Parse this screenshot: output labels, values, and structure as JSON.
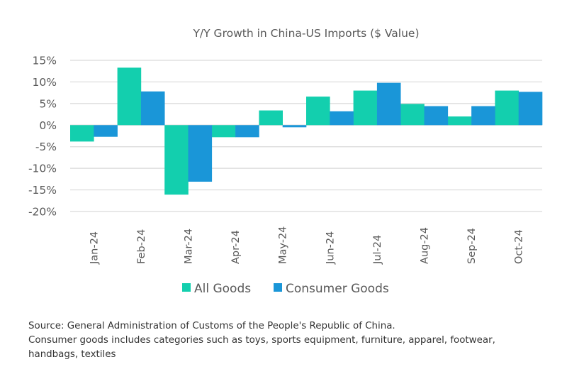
{
  "chart_data": {
    "type": "bar",
    "title": "Y/Y Growth in China-US Imports ($ Value)",
    "xlabel": "",
    "ylabel": "",
    "categories": [
      "Jan-24",
      "Feb-24",
      "Mar-24",
      "Apr-24",
      "May-24",
      "Jun-24",
      "Jul-24",
      "Aug-24",
      "Sep-24",
      "Oct-24"
    ],
    "series": [
      {
        "name": "All Goods",
        "color": "#13CFAE",
        "values": [
          -3.8,
          13.3,
          -16.1,
          -2.8,
          3.4,
          6.6,
          8.0,
          4.9,
          2.0,
          8.0
        ]
      },
      {
        "name": "Consumer Goods",
        "color": "#1A96D8",
        "values": [
          -2.7,
          7.8,
          -13.1,
          -2.8,
          -0.5,
          3.2,
          9.8,
          4.4,
          4.4,
          7.7
        ]
      }
    ],
    "ylim": [
      -20,
      15
    ],
    "yticks": [
      15,
      10,
      5,
      0,
      -5,
      -10,
      -15,
      -20
    ],
    "ytick_labels": [
      "15%",
      "10%",
      "5%",
      "0%",
      "-5%",
      "-10%",
      "-15%",
      "-20%"
    ],
    "grid": true,
    "legend_position": "bottom"
  },
  "footnote": {
    "lines": [
      "Source: General Administration of Customs of the People's Republic of China.",
      "Consumer goods includes categories such as toys, sports equipment, furniture, apparel, footwear,",
      "handbags, textiles"
    ]
  }
}
